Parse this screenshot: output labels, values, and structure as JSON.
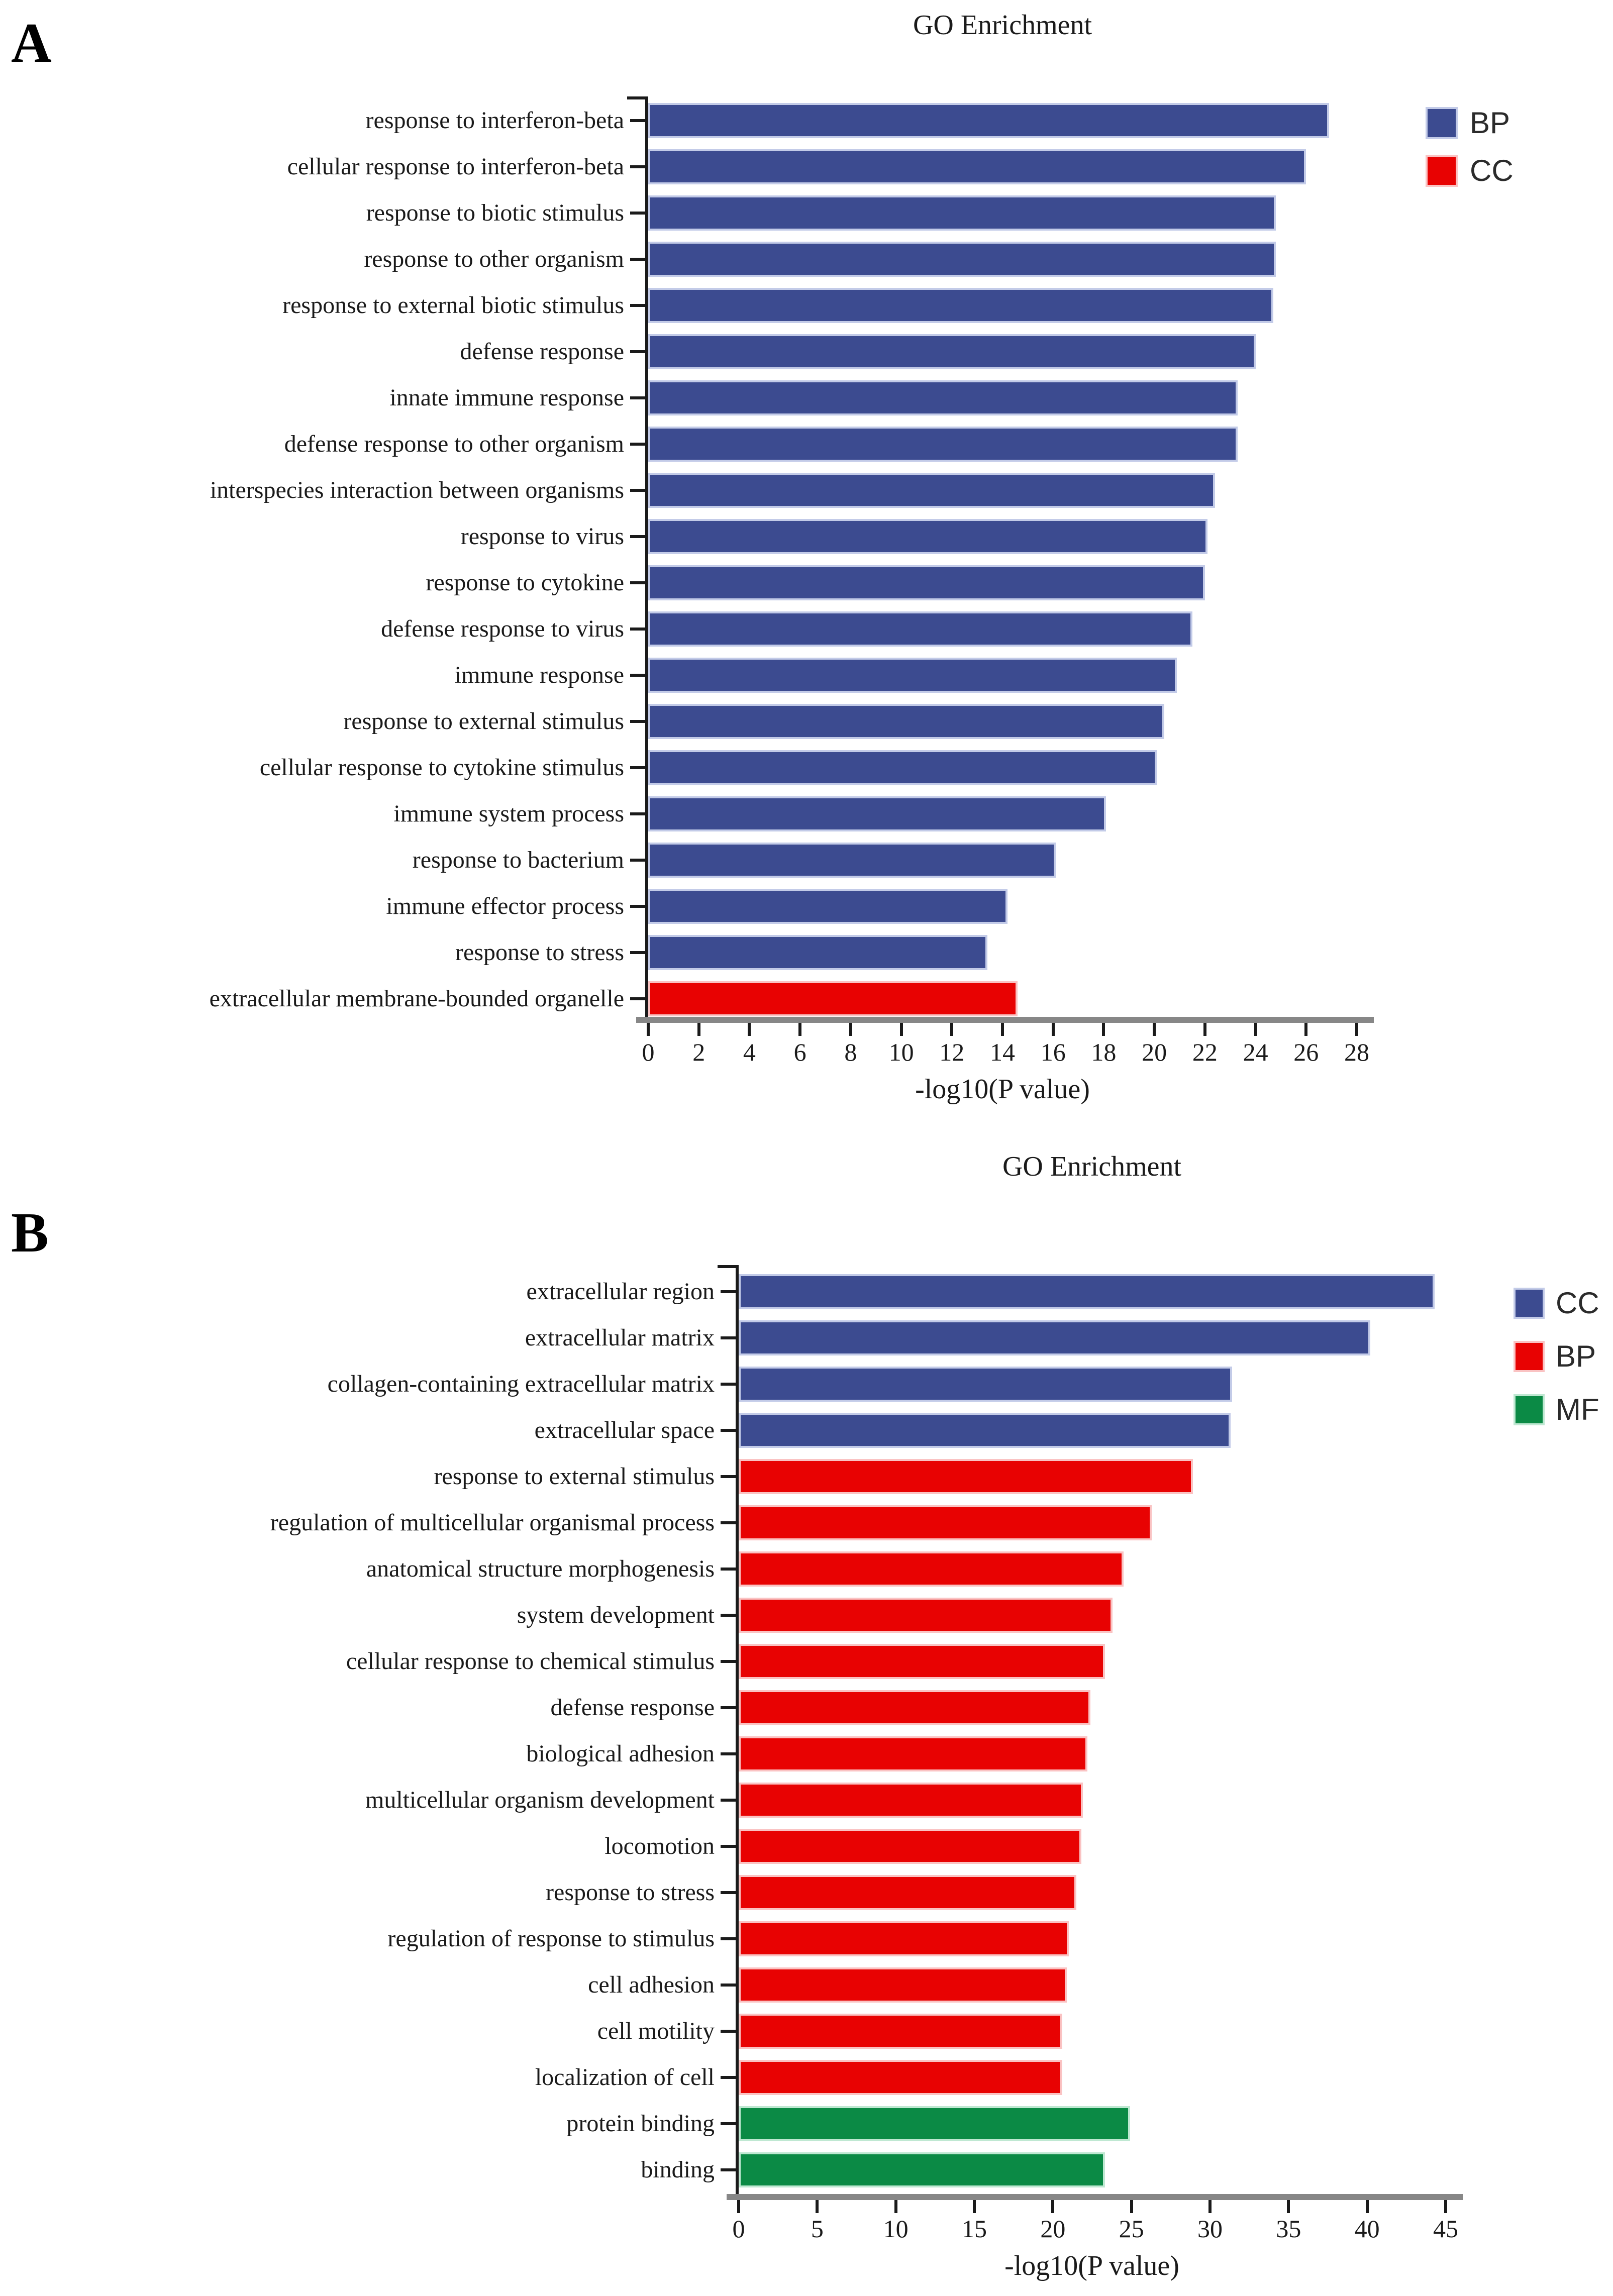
{
  "figure_title": "GO Enrichment",
  "chart_data": [
    {
      "panel_label": "A",
      "type": "bar",
      "orientation": "horizontal",
      "title": "GO Enrichment",
      "xlabel": "-log10(P value)",
      "xlim": [
        0,
        28
      ],
      "xticks": [
        0,
        2,
        4,
        6,
        8,
        10,
        12,
        14,
        16,
        18,
        20,
        22,
        24,
        26,
        28
      ],
      "grid": false,
      "legend_position": "upper right",
      "legend": [
        {
          "label": "BP",
          "color": "#3c4b90",
          "edge": "#c3cbe8"
        },
        {
          "label": "CC",
          "color": "#e80202",
          "edge": "#fac3c3"
        }
      ],
      "group_colors": {
        "BP": {
          "fill": "#3c4b90",
          "edge": "#c3cbe8"
        },
        "CC": {
          "fill": "#e80202",
          "edge": "#fac3c3"
        }
      },
      "bars": [
        {
          "category": "response to interferon-beta",
          "value": 26.9,
          "group": "BP"
        },
        {
          "category": "cellular response to interferon-beta",
          "value": 26.0,
          "group": "BP"
        },
        {
          "category": "response to biotic stimulus",
          "value": 24.8,
          "group": "BP"
        },
        {
          "category": "response to other organism",
          "value": 24.8,
          "group": "BP"
        },
        {
          "category": "response to external biotic stimulus",
          "value": 24.7,
          "group": "BP"
        },
        {
          "category": "defense response",
          "value": 24.0,
          "group": "BP"
        },
        {
          "category": "innate immune response",
          "value": 23.3,
          "group": "BP"
        },
        {
          "category": "defense response to other organism",
          "value": 23.3,
          "group": "BP"
        },
        {
          "category": "interspecies interaction between organisms",
          "value": 22.4,
          "group": "BP"
        },
        {
          "category": "response to virus",
          "value": 22.1,
          "group": "BP"
        },
        {
          "category": "response to cytokine",
          "value": 22.0,
          "group": "BP"
        },
        {
          "category": "defense response to virus",
          "value": 21.5,
          "group": "BP"
        },
        {
          "category": "immune response",
          "value": 20.9,
          "group": "BP"
        },
        {
          "category": "response to external stimulus",
          "value": 20.4,
          "group": "BP"
        },
        {
          "category": "cellular response to cytokine stimulus",
          "value": 20.1,
          "group": "BP"
        },
        {
          "category": "immune system process",
          "value": 18.1,
          "group": "BP"
        },
        {
          "category": "response to bacterium",
          "value": 16.1,
          "group": "BP"
        },
        {
          "category": "immune effector process",
          "value": 14.2,
          "group": "BP"
        },
        {
          "category": "response to stress",
          "value": 13.4,
          "group": "BP"
        },
        {
          "category": "extracellular membrane-bounded organelle",
          "value": 14.6,
          "group": "CC"
        }
      ]
    },
    {
      "panel_label": "B",
      "type": "bar",
      "orientation": "horizontal",
      "title": "GO Enrichment",
      "xlabel": "-log10(P value)",
      "xlim": [
        0,
        45
      ],
      "xticks": [
        0,
        5,
        10,
        15,
        20,
        25,
        30,
        35,
        40,
        45
      ],
      "grid": false,
      "legend_position": "upper right",
      "legend": [
        {
          "label": "CC",
          "color": "#3c4b90",
          "edge": "#c3cbe8"
        },
        {
          "label": "BP",
          "color": "#e80202",
          "edge": "#fac3c3"
        },
        {
          "label": "MF",
          "color": "#0b8a45",
          "edge": "#bfe8d2"
        }
      ],
      "group_colors": {
        "CC": {
          "fill": "#3c4b90",
          "edge": "#c3cbe8"
        },
        "BP": {
          "fill": "#e80202",
          "edge": "#fac3c3"
        },
        "MF": {
          "fill": "#0b8a45",
          "edge": "#bfe8d2"
        }
      },
      "bars": [
        {
          "category": "extracellular region",
          "value": 44.3,
          "group": "CC"
        },
        {
          "category": "extracellular matrix",
          "value": 40.2,
          "group": "CC"
        },
        {
          "category": "collagen-containing extracellular matrix",
          "value": 31.4,
          "group": "CC"
        },
        {
          "category": "extracellular space",
          "value": 31.3,
          "group": "CC"
        },
        {
          "category": "response to external stimulus",
          "value": 28.9,
          "group": "BP"
        },
        {
          "category": "regulation of multicellular organismal process",
          "value": 26.3,
          "group": "BP"
        },
        {
          "category": "anatomical structure morphogenesis",
          "value": 24.5,
          "group": "BP"
        },
        {
          "category": "system development",
          "value": 23.8,
          "group": "BP"
        },
        {
          "category": "cellular response to chemical stimulus",
          "value": 23.3,
          "group": "BP"
        },
        {
          "category": "defense response",
          "value": 22.4,
          "group": "BP"
        },
        {
          "category": "biological adhesion",
          "value": 22.2,
          "group": "BP"
        },
        {
          "category": "multicellular organism development",
          "value": 21.9,
          "group": "BP"
        },
        {
          "category": "locomotion",
          "value": 21.8,
          "group": "BP"
        },
        {
          "category": "response to stress",
          "value": 21.5,
          "group": "BP"
        },
        {
          "category": "regulation of response to stimulus",
          "value": 21.0,
          "group": "BP"
        },
        {
          "category": "cell adhesion",
          "value": 20.9,
          "group": "BP"
        },
        {
          "category": "cell motility",
          "value": 20.6,
          "group": "BP"
        },
        {
          "category": "localization of cell",
          "value": 20.6,
          "group": "BP"
        },
        {
          "category": "protein binding",
          "value": 24.9,
          "group": "MF"
        },
        {
          "category": "binding",
          "value": 23.3,
          "group": "MF"
        }
      ]
    }
  ]
}
